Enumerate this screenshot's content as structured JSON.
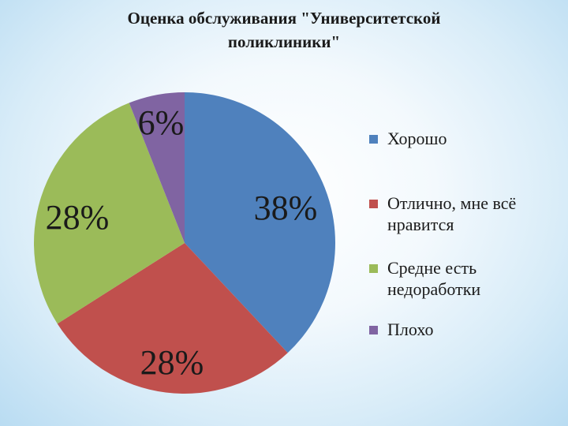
{
  "title_lines": [
    "Оценка обслуживания \"Университетской",
    "поликлиники\""
  ],
  "chart_data": {
    "type": "pie",
    "title": "Оценка обслуживания \"Университетской поликлиники\"",
    "categories": [
      "Хорошо",
      "Отлично, мне всё нравится",
      "Средне есть недоработки",
      "Плохо"
    ],
    "values": [
      38,
      28,
      28,
      6
    ],
    "data_labels": [
      "38%",
      "28%",
      "28%",
      "6%"
    ],
    "colors": [
      "#4f81bd",
      "#c0504d",
      "#9bbb59",
      "#8064a2"
    ],
    "legend_position": "right"
  },
  "legend": [
    {
      "lines": [
        "Хорошо"
      ],
      "color": "#4f81bd"
    },
    {
      "lines": [
        "Отлично, мне всё",
        "нравится"
      ],
      "color": "#c0504d"
    },
    {
      "lines": [
        "Средне есть",
        "недоработки"
      ],
      "color": "#9bbb59"
    },
    {
      "lines": [
        "Плохо"
      ],
      "color": "#8064a2"
    }
  ]
}
